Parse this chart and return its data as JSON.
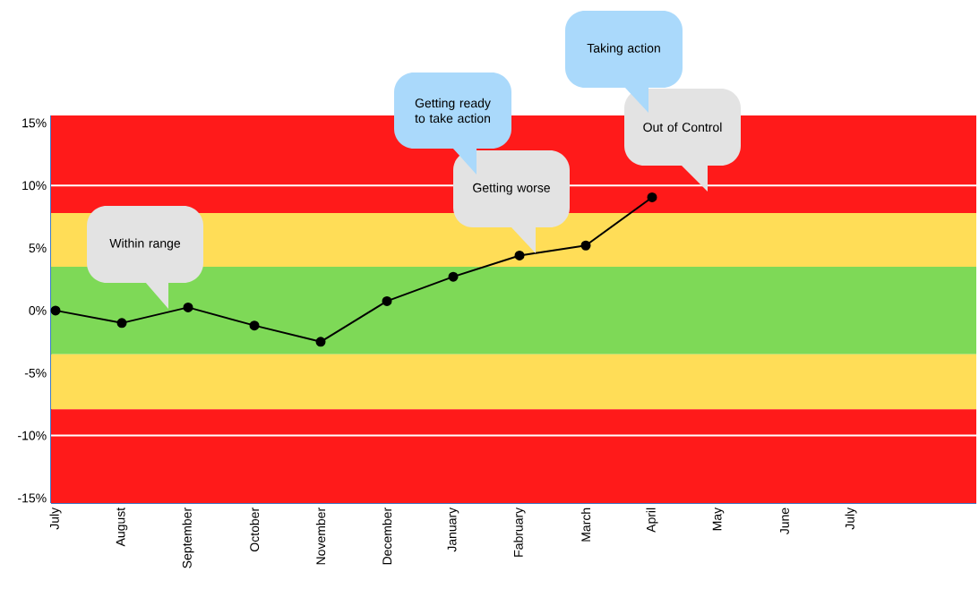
{
  "chart_data": {
    "type": "line",
    "categories": [
      "July",
      "August",
      "September",
      "October",
      "November",
      "December",
      "January",
      "Fabruary",
      "March",
      "April",
      "May",
      "June",
      "July"
    ],
    "series": [
      {
        "color": "#000000",
        "values": [
          0,
          -1.0,
          0.25,
          -1.2,
          -2.5,
          0.75,
          2.7,
          4.4,
          5.2,
          9.05,
          null,
          null,
          null
        ]
      }
    ],
    "marker": "circle",
    "ylim": [
      -15.4,
      15.6
    ],
    "yticks": [
      {
        "value": 15,
        "label": "15%"
      },
      {
        "value": 10,
        "label": "10%"
      },
      {
        "value": 5,
        "label": "5%"
      },
      {
        "value": 0,
        "label": "0%"
      },
      {
        "value": -5,
        "label": "-5%"
      },
      {
        "value": -10,
        "label": "-10%"
      },
      {
        "value": -15,
        "label": "-15%"
      }
    ],
    "bands": [
      {
        "axis": "y",
        "from": 7.8,
        "to": 15.6,
        "color": "#ff1a1a"
      },
      {
        "axis": "y",
        "from": 3.5,
        "to": 7.8,
        "color": "#ffdd57"
      },
      {
        "axis": "y",
        "from": -3.5,
        "to": 3.5,
        "color": "#7ed957"
      },
      {
        "axis": "y",
        "from": -7.9,
        "to": -3.5,
        "color": "#ffdd57"
      },
      {
        "axis": "y",
        "from": -15.4,
        "to": -7.9,
        "color": "#ff1a1a"
      }
    ],
    "ref_lines": [
      {
        "axis": "y",
        "value": 10,
        "color": "#ffffff"
      },
      {
        "axis": "y",
        "value": -10,
        "color": "#ffffff"
      }
    ],
    "annotations": [
      "Within range",
      "Getting worse",
      "Out of Control",
      "Getting ready to take action",
      "Taking action"
    ]
  }
}
